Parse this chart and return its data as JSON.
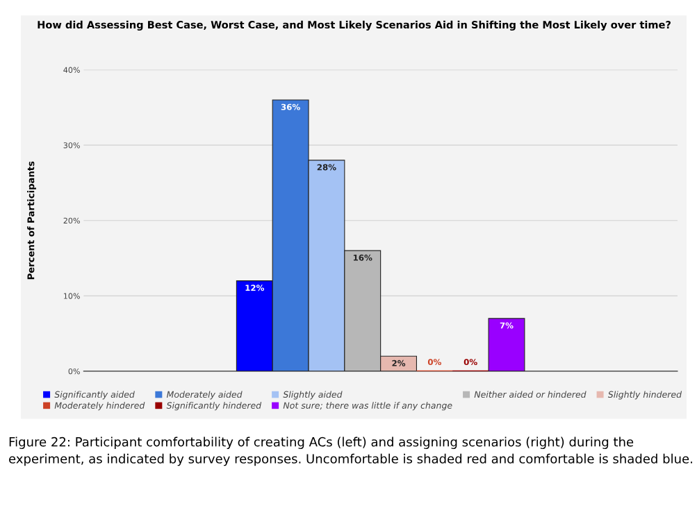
{
  "chart_data": {
    "type": "bar",
    "title": "How did Assessing Best Case, Worst Case, and Most Likely Scenarios Aid in Shifting the Most Likely over time?",
    "ylabel": "Percent of Participants",
    "categories": [
      null
    ],
    "series": [
      {
        "name": "Significantly aided",
        "color": "#0000ff",
        "values": [
          12
        ],
        "value_labels": [
          "12%"
        ]
      },
      {
        "name": "Moderately aided",
        "color": "#3c78d8",
        "values": [
          36
        ],
        "value_labels": [
          "36%"
        ]
      },
      {
        "name": "Slightly aided",
        "color": "#a4c2f4",
        "values": [
          28
        ],
        "value_labels": [
          "28%"
        ]
      },
      {
        "name": "Neither aided or hindered",
        "color": "#b7b7b7",
        "values": [
          16
        ],
        "value_labels": [
          "16%"
        ]
      },
      {
        "name": "Slightly hindered",
        "color": "#e6b8af",
        "values": [
          2
        ],
        "value_labels": [
          "2%"
        ]
      },
      {
        "name": "Moderately hindered",
        "color": "#cc4125",
        "values": [
          0
        ],
        "value_labels": [
          "0%"
        ]
      },
      {
        "name": "Significantly hindered",
        "color": "#990000",
        "values": [
          0
        ],
        "value_labels": [
          "0%"
        ]
      },
      {
        "name": "Not sure; there was little if any change",
        "color": "#9900ff",
        "values": [
          7
        ],
        "value_labels": [
          "7%"
        ]
      }
    ],
    "ylim": [
      0,
      40
    ],
    "yticks": [
      {
        "value": 0,
        "label": "0%"
      },
      {
        "value": 10,
        "label": "10%"
      },
      {
        "value": 20,
        "label": "20%"
      },
      {
        "value": 30,
        "label": "30%"
      },
      {
        "value": 40,
        "label": "40%"
      }
    ],
    "grid": "y",
    "legend": "bottom",
    "annotations": [
      "Figure 22: Participant comfortability of creating ACs (left) and assigning scenarios (right) during the experiment, as indicated by survey responses. Uncomfortable is shaded red and comfortable is shaded blue."
    ]
  }
}
